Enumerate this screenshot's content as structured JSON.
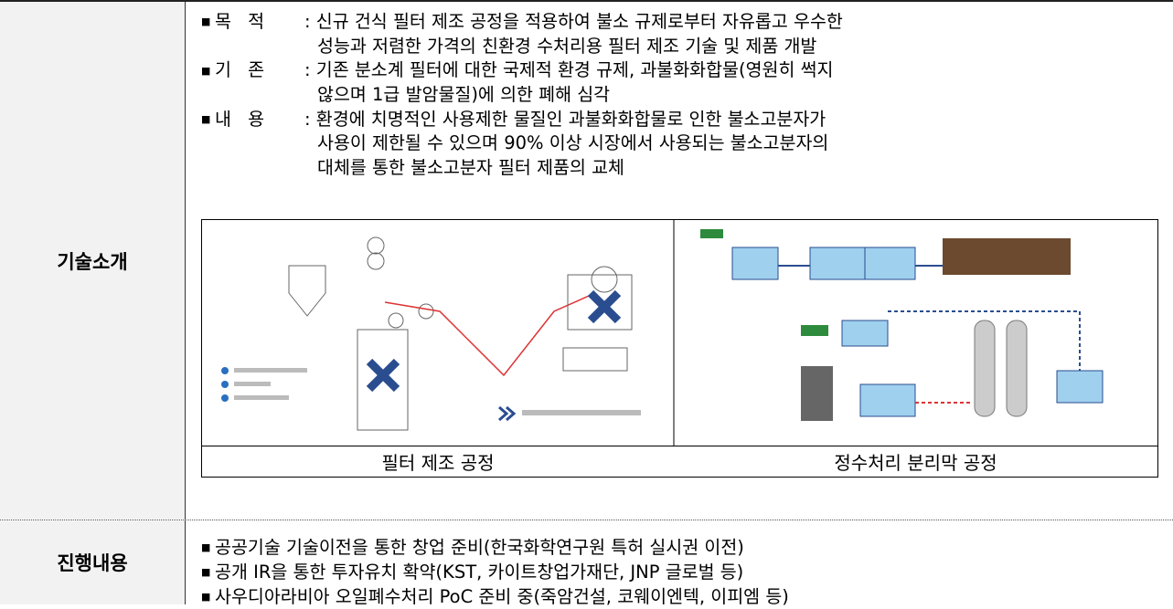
{
  "table": {
    "rows": [
      {
        "label": "기술소개",
        "items": [
          {
            "key": "목 적",
            "lines": [
              "신규 건식 필터 제조 공정을 적용하여 불소 규제로부터 자유롭고 우수한",
              "성능과 저렴한 가격의 친환경 수처리용 필터 제조 기술 및 제품 개발"
            ]
          },
          {
            "key": "기 존",
            "lines": [
              "기존 분소계 필터에 대한 국제적 환경 규제, 과불화화합물(영원히 썩지",
              "않으며 1급 발암물질)에 의한 폐해 심각"
            ]
          },
          {
            "key": "내 용",
            "lines": [
              "환경에 치명적인 사용제한 물질인 과불화화합물로 인한 불소고분자가",
              "사용이 제한될 수 있으며 90% 이상 시장에서 사용되는 불소고분자의",
              "대체를 통한 불소고분자 필터 제품의 교체"
            ]
          }
        ],
        "figures": [
          {
            "caption": "필터 제조 공정"
          },
          {
            "caption": "정수처리 분리막 공정"
          }
        ]
      },
      {
        "label": "진행내용",
        "items": [
          {
            "lines": [
              "공공기술 기술이전을 통한 창업 준비(한국화학연구원 특허 실시권 이전)"
            ]
          },
          {
            "lines": [
              "공개 IR을 통한 투자유치 확약(KST, 카이트창업가재단, JNP 글로벌 등)"
            ]
          },
          {
            "lines": [
              "사우디아라비아 오일폐수처리 PoC 준비 중(죽암건설, 코웨이엔텍, 이피엠 등)"
            ]
          }
        ]
      }
    ]
  }
}
